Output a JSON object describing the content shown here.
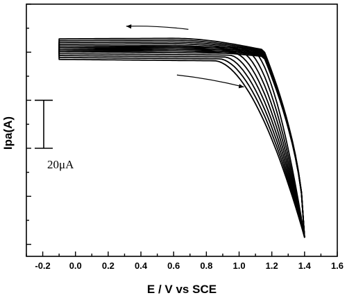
{
  "chart_data": {
    "type": "line",
    "xlabel": "E / V vs SCE",
    "ylabel": "Ipa(A)",
    "xlim": [
      -0.3,
      1.6
    ],
    "x_ticks": [
      "-0.2",
      "0.0",
      "0.2",
      "0.4",
      "0.6",
      "0.8",
      "1.0",
      "1.2",
      "1.4",
      "1.6"
    ],
    "x_tick_values": [
      -0.2,
      0.0,
      0.2,
      0.4,
      0.6,
      0.8,
      1.0,
      1.2,
      1.4,
      1.6
    ],
    "y_major_ticks_shown_without_labels": true,
    "scale_bar_label": "20μA",
    "scale_bar_value_uA": 20,
    "ylim_uA": [
      -25,
      80
    ],
    "scan_arrows": [
      "reverse scan (right to left) along upper branch",
      "forward scan (left to right) toward oxidation onset"
    ],
    "series": [
      {
        "baseline_uA": 57.0,
        "turn_uA": 58.2,
        "onset_V": 0.85,
        "vertex_uA": -17
      },
      {
        "baseline_uA": 57.8,
        "turn_uA": 58.6,
        "onset_V": 0.88,
        "vertex_uA": -17
      },
      {
        "baseline_uA": 58.6,
        "turn_uA": 59.0,
        "onset_V": 0.91,
        "vertex_uA": -17
      },
      {
        "baseline_uA": 59.4,
        "turn_uA": 59.4,
        "onset_V": 0.94,
        "vertex_uA": -17
      },
      {
        "baseline_uA": 60.2,
        "turn_uA": 59.8,
        "onset_V": 0.97,
        "vertex_uA": -17
      },
      {
        "baseline_uA": 61.0,
        "turn_uA": 60.2,
        "onset_V": 1.0,
        "vertex_uA": -17
      },
      {
        "baseline_uA": 61.8,
        "turn_uA": 60.6,
        "onset_V": 1.03,
        "vertex_uA": -17
      },
      {
        "baseline_uA": 62.6,
        "turn_uA": 61.0,
        "onset_V": 1.06,
        "vertex_uA": -17
      }
    ],
    "x_start_V": -0.1,
    "x_vertex_V": 1.4,
    "grid": false,
    "legend": "none"
  }
}
